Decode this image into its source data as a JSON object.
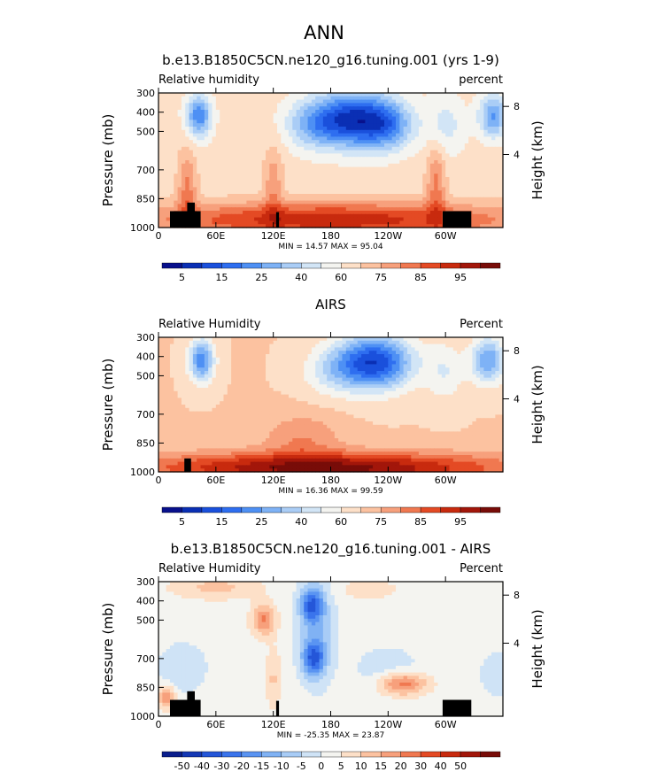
{
  "figure_title": "ANN",
  "palette": {
    "seq": [
      "#08108c",
      "#0a2fb4",
      "#1a50dc",
      "#2e6ef0",
      "#4e90f4",
      "#7eb2f6",
      "#aacdf6",
      "#d2e5f6",
      "#f4f4f0",
      "#fde0c8",
      "#fcc2a0",
      "#f7a07c",
      "#f07850",
      "#e44a24",
      "#c82a0e",
      "#a2160a",
      "#780c08"
    ],
    "diff": [
      "#0a1e8c",
      "#1438b4",
      "#2456d8",
      "#3a74ec",
      "#5a94f2",
      "#80b2f4",
      "#a8ccf6",
      "#cfe3f6",
      "#f4f4f0",
      "#fde0c8",
      "#fcc2a0",
      "#f7a07c",
      "#f07850",
      "#e44a24",
      "#c82a0e",
      "#a2160a",
      "#780c08"
    ],
    "land": "#000000"
  },
  "chart_data": [
    {
      "type": "heatmap",
      "title": "b.e13.B1850C5CN.ne120_g16.tuning.001 (yrs 1-9)",
      "left_label": "Relative humidity",
      "right_label": "percent",
      "ylabel": "Pressure (mb)",
      "y2label": "Height (km)",
      "x_ticks": [
        "0",
        "60E",
        "120E",
        "180",
        "120W",
        "60W"
      ],
      "x_tick_lon": [
        0,
        60,
        120,
        180,
        240,
        300
      ],
      "xlim": [
        0,
        360
      ],
      "y_ticks": [
        "300",
        "400",
        "500",
        "700",
        "850",
        "1000"
      ],
      "y_tick_p": [
        300,
        400,
        500,
        700,
        850,
        1000
      ],
      "ylim": [
        300,
        1000
      ],
      "y2_ticks": [
        "8",
        "4"
      ],
      "y2_tick_p": [
        370,
        620
      ],
      "stats": "MIN =   14.57   MAX =   95.04",
      "colorbar_labels": [
        "5",
        "15",
        "25",
        "40",
        "60",
        "75",
        "85",
        "95"
      ],
      "palette": "seq",
      "field": {
        "base": 55,
        "blobs": [
          {
            "lon": 205,
            "p": 440,
            "slon": 45,
            "sp": 140,
            "amp": -42
          },
          {
            "lon": 160,
            "p": 470,
            "slon": 28,
            "sp": 120,
            "amp": -12
          },
          {
            "lon": 240,
            "p": 480,
            "slon": 25,
            "sp": 120,
            "amp": -14
          },
          {
            "lon": 42,
            "p": 420,
            "slon": 13,
            "sp": 110,
            "amp": -28
          },
          {
            "lon": 350,
            "p": 420,
            "slon": 15,
            "sp": 110,
            "amp": -24
          },
          {
            "lon": 300,
            "p": 470,
            "slon": 20,
            "sp": 150,
            "amp": -10
          },
          {
            "lon": 180,
            "p": 960,
            "slon": 200,
            "sp": 90,
            "amp": 28
          },
          {
            "lon": 120,
            "p": 780,
            "slon": 10,
            "sp": 200,
            "amp": 12
          },
          {
            "lon": 290,
            "p": 780,
            "slon": 10,
            "sp": 220,
            "amp": 15
          },
          {
            "lon": 30,
            "p": 800,
            "slon": 10,
            "sp": 200,
            "amp": 15
          }
        ]
      },
      "land": [
        [
          12,
          44,
          915
        ],
        [
          30,
          38,
          870
        ],
        [
          123,
          126,
          920
        ],
        [
          297,
          327,
          915
        ]
      ]
    },
    {
      "type": "heatmap",
      "title": "AIRS",
      "left_label": "Relative Humidity",
      "right_label": "Percent",
      "ylabel": "Pressure (mb)",
      "y2label": "Height (km)",
      "x_ticks": [
        "0",
        "60E",
        "120E",
        "180",
        "120W",
        "60W"
      ],
      "x_tick_lon": [
        0,
        60,
        120,
        180,
        240,
        300
      ],
      "xlim": [
        0,
        360
      ],
      "y_ticks": [
        "300",
        "400",
        "500",
        "700",
        "850",
        "1000"
      ],
      "y_tick_p": [
        300,
        400,
        500,
        700,
        850,
        1000
      ],
      "ylim": [
        300,
        1000
      ],
      "y2_ticks": [
        "8",
        "4"
      ],
      "y2_tick_p": [
        370,
        620
      ],
      "stats": "MIN =   16.36   MAX =   99.59",
      "colorbar_labels": [
        "5",
        "15",
        "25",
        "40",
        "60",
        "75",
        "85",
        "95"
      ],
      "palette": "seq",
      "field": {
        "base": 58,
        "blobs": [
          {
            "lon": 225,
            "p": 430,
            "slon": 40,
            "sp": 140,
            "amp": -42
          },
          {
            "lon": 180,
            "p": 480,
            "slon": 30,
            "sp": 120,
            "amp": -10
          },
          {
            "lon": 45,
            "p": 420,
            "slon": 13,
            "sp": 110,
            "amp": -30
          },
          {
            "lon": 345,
            "p": 420,
            "slon": 18,
            "sp": 120,
            "amp": -26
          },
          {
            "lon": 300,
            "p": 480,
            "slon": 20,
            "sp": 150,
            "amp": -10
          },
          {
            "lon": 175,
            "p": 980,
            "slon": 190,
            "sp": 80,
            "amp": 34
          },
          {
            "lon": 150,
            "p": 820,
            "slon": 40,
            "sp": 120,
            "amp": 10
          }
        ]
      },
      "land": [
        [
          27,
          34,
          930
        ]
      ]
    },
    {
      "type": "heatmap",
      "title": "b.e13.B1850C5CN.ne120_g16.tuning.001 - AIRS",
      "left_label": "Relative Humidity",
      "right_label": "Percent",
      "ylabel": "Pressure (mb)",
      "y2label": "Height (km)",
      "x_ticks": [
        "0",
        "60E",
        "120E",
        "180",
        "120W",
        "60W"
      ],
      "x_tick_lon": [
        0,
        60,
        120,
        180,
        240,
        300
      ],
      "xlim": [
        0,
        360
      ],
      "y_ticks": [
        "300",
        "400",
        "500",
        "700",
        "850",
        "1000"
      ],
      "y_tick_p": [
        300,
        400,
        500,
        700,
        850,
        1000
      ],
      "ylim": [
        300,
        1000
      ],
      "y2_ticks": [
        "8",
        "4"
      ],
      "y2_tick_p": [
        370,
        620
      ],
      "stats": "MIN =  -25.35   MAX =   23.87",
      "colorbar_labels": [
        "-50",
        "-40",
        "-30",
        "-20",
        "-15",
        "-10",
        "-5",
        "0",
        "5",
        "10",
        "15",
        "20",
        "30",
        "40",
        "50"
      ],
      "palette": "diff",
      "field": {
        "base": 0,
        "blobs": [
          {
            "lon": 160,
            "p": 420,
            "slon": 12,
            "sp": 90,
            "amp": -22
          },
          {
            "lon": 162,
            "p": 700,
            "slon": 12,
            "sp": 90,
            "amp": -22
          },
          {
            "lon": 165,
            "p": 560,
            "slon": 18,
            "sp": 260,
            "amp": -12
          },
          {
            "lon": 240,
            "p": 760,
            "slon": 35,
            "sp": 120,
            "amp": -6
          },
          {
            "lon": 25,
            "p": 750,
            "slon": 25,
            "sp": 130,
            "amp": -7
          },
          {
            "lon": 355,
            "p": 780,
            "slon": 20,
            "sp": 120,
            "amp": -6
          },
          {
            "lon": 255,
            "p": 830,
            "slon": 25,
            "sp": 60,
            "amp": 22
          },
          {
            "lon": 110,
            "p": 500,
            "slon": 12,
            "sp": 80,
            "amp": 18
          },
          {
            "lon": 60,
            "p": 330,
            "slon": 45,
            "sp": 60,
            "amp": 9
          },
          {
            "lon": 220,
            "p": 340,
            "slon": 30,
            "sp": 50,
            "amp": 6
          },
          {
            "lon": 8,
            "p": 900,
            "slon": 10,
            "sp": 60,
            "amp": 16
          },
          {
            "lon": 120,
            "p": 800,
            "slon": 8,
            "sp": 150,
            "amp": 8
          }
        ]
      },
      "land": [
        [
          12,
          44,
          915
        ],
        [
          30,
          38,
          870
        ],
        [
          123,
          126,
          920
        ],
        [
          297,
          327,
          915
        ]
      ]
    }
  ]
}
